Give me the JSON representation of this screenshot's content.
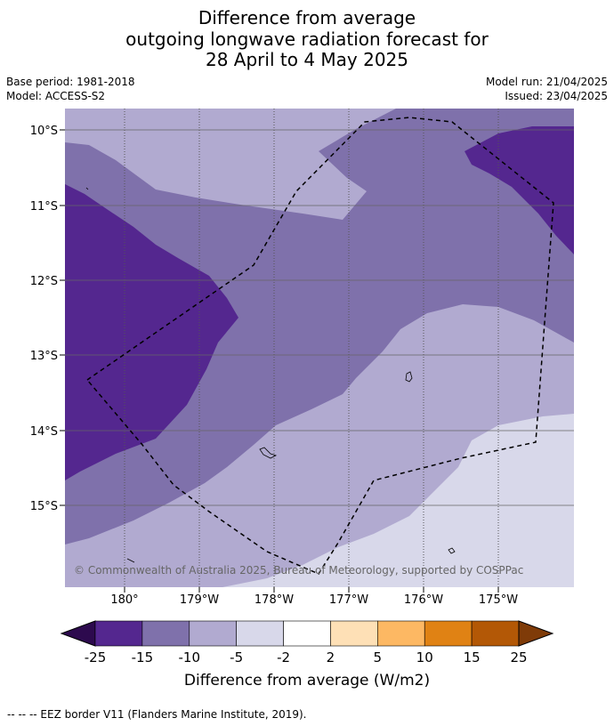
{
  "title": {
    "line1": "Difference from average",
    "line2": "outgoing longwave radiation forecast for",
    "line3": "28 April to 4 May 2025"
  },
  "meta": {
    "base_period": "Base period: 1981-2018",
    "model": "Model: ACCESS-S2",
    "model_run": "Model run: 21/04/2025",
    "issued": "Issued: 23/04/2025"
  },
  "map": {
    "lat_labels": [
      "10°S",
      "11°S",
      "12°S",
      "13°S",
      "14°S",
      "15°S"
    ],
    "lon_labels": [
      "180°",
      "179°W",
      "178°W",
      "177°W",
      "176°W",
      "175°W"
    ],
    "copyright": "© Commonwealth of Australia 2025, Bureau of Meteorology, supported by COSPPac"
  },
  "colorbar": {
    "ticks": [
      "-25",
      "-15",
      "-10",
      "-5",
      "-2",
      "2",
      "5",
      "10",
      "15",
      "25"
    ],
    "colors": [
      "#2d0a4e",
      "#54278f",
      "#7f71ab",
      "#b1aad0",
      "#d8d8ea",
      "#ffffff",
      "#fee0b6",
      "#fdb863",
      "#e08214",
      "#b35806",
      "#7f3b08"
    ],
    "label": "Difference from average (W/m2)"
  },
  "footer": "--  --  -- EEZ border V11 (Flanders Marine Institute, 2019)."
}
